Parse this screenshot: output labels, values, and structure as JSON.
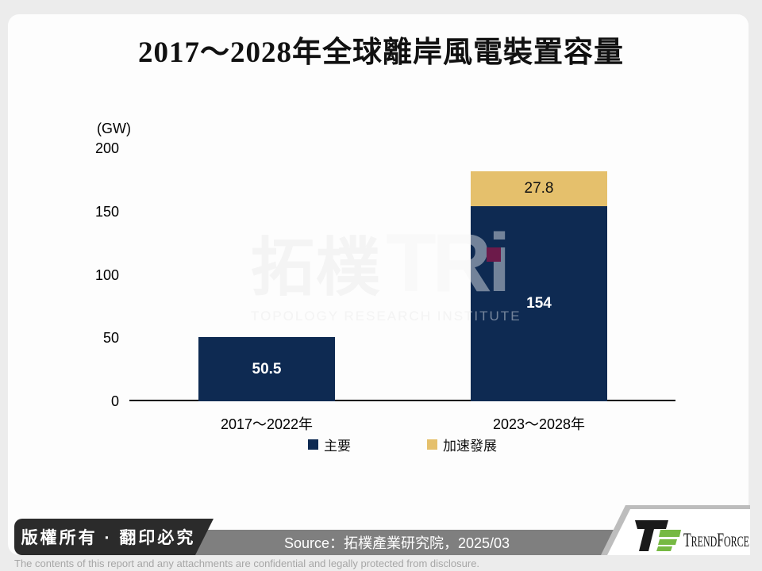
{
  "slide": {
    "title": "2017～2028年全球離岸風電裝置容量"
  },
  "chart_data": {
    "type": "bar",
    "stacked": true,
    "title": "2017～2028年全球離岸風電裝置容量",
    "unit_label": "(GW)",
    "categories": [
      "2017～2022年",
      "2023～2028年"
    ],
    "series": [
      {
        "name": "主要",
        "color": "#0e2a52",
        "values": [
          50.5,
          154
        ]
      },
      {
        "name": "加速發展",
        "color": "#e5c06c",
        "values": [
          0,
          27.8
        ]
      }
    ],
    "ylim": [
      0,
      200
    ],
    "yticks": [
      0,
      50,
      100,
      150,
      200
    ],
    "grid": false,
    "legend_position": "bottom"
  },
  "watermark": {
    "cjk": "拓樸",
    "latin": "TRi",
    "subtitle": "TOPOLOGY RESEARCH INSTITUTE",
    "dot_color": "#6c1a4a"
  },
  "footer": {
    "copyright": "版權所有 · 翻印必究",
    "source": "Source：拓樸產業研究院，2025/03",
    "brand": "TrendForce",
    "brand_green": "#76b943",
    "confidential": "The contents of this report and any attachments are confidential and legally protected from disclosure."
  }
}
